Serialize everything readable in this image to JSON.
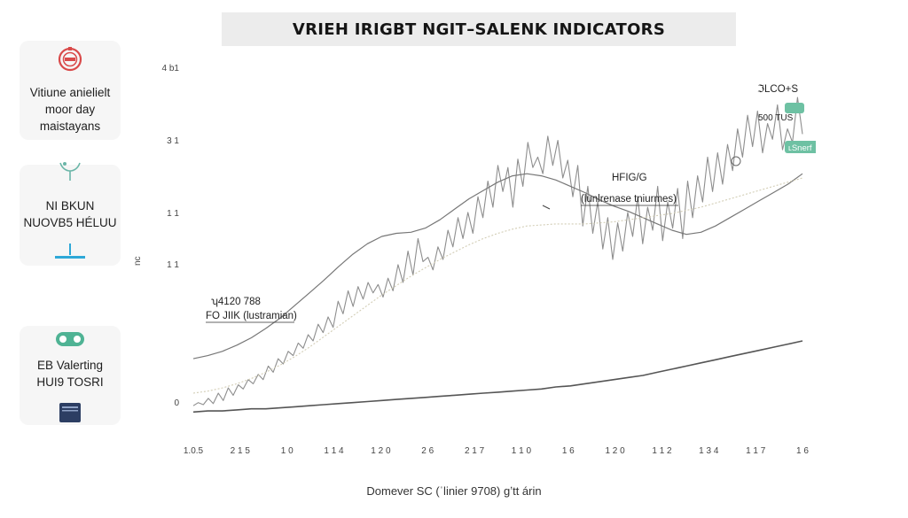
{
  "header": {
    "title": "VRIEH IRIGBT NGIT–SALENK INDICATORS"
  },
  "sidebar": {
    "cards": [
      {
        "icon": "badge-icon",
        "lines": [
          "Vitiune anielielt",
          "moor day",
          "maistayans"
        ]
      },
      {
        "icon": "sprout-icon",
        "lines": [
          "NI BKUN",
          "NUOVB5 HÉLUU"
        ]
      },
      {
        "icon": "gamepad-icon",
        "lines": [
          "EB Valerting",
          "HUI9 TOSRI"
        ]
      }
    ]
  },
  "colors": {
    "price_series": "#8e8e8e",
    "moving_average": "#777777",
    "dotted_band": "#d2cdb5",
    "baseline": "#555555",
    "pill": "#6ec1a3",
    "badge_icon": "#d94a4a",
    "sprout_icon": "#6bb6a8",
    "gamepad_icon": "#4fb394",
    "wallet_icon": "#2c3e63",
    "slider_icon": "#2ea8d8"
  },
  "chart_data": {
    "type": "line",
    "title": "VRIEH IRIGBT NGIT–SALENK INDICATORS",
    "xlabel": "Domever SC (ˈlinier 9708) gʼtt árin",
    "ylabel": "",
    "x_ticks": [
      "1.0.5",
      "2 1 5",
      "1 0",
      "1 1 4",
      "1 2 0",
      "2 6",
      "2 1 7",
      "1 1 0",
      "1 6",
      "1 2 0",
      "1 1 2",
      "1 3 4",
      "1 1 7",
      "1 6"
    ],
    "y_ticks": [
      "4 b1",
      "3 1",
      "1 1",
      "1 1",
      "0"
    ],
    "series": [
      {
        "values": [
          10,
          13,
          11,
          17,
          12,
          22,
          15,
          27,
          20,
          30,
          26,
          35,
          31,
          40,
          35,
          48,
          42,
          55,
          50,
          62,
          58,
          70,
          65,
          78,
          72,
          88,
          80,
          95,
          85,
          110,
          98,
          120,
          105,
          124,
          112,
          128,
          118,
          126,
          114,
          132,
          120,
          145,
          128,
          158,
          135,
          170,
          148,
          152,
          140,
          162,
          150,
          178,
          162,
          190,
          170,
          195,
          175,
          210,
          190,
          225,
          200,
          240,
          215,
          238,
          200,
          246,
          220,
          262,
          238,
          248,
          232,
          268,
          240,
          264,
          228,
          245,
          210,
          240,
          182,
          220,
          175,
          205,
          160,
          190,
          150,
          185,
          158,
          195,
          172,
          210,
          165,
          200,
          178,
          220,
          168,
          205,
          180,
          218,
          170,
          225,
          190,
          230,
          205,
          248,
          215,
          252,
          222,
          260,
          235,
          275,
          248,
          288,
          258,
          292,
          252,
          280,
          265,
          298,
          255,
          275,
          262,
          305,
          270
        ]
      },
      {
        "values": [
          55,
          58,
          62,
          68,
          75,
          84,
          94,
          106,
          118,
          130,
          143,
          155,
          165,
          172,
          175,
          176,
          180,
          188,
          198,
          208,
          216,
          224,
          230,
          232,
          230,
          226,
          220,
          214,
          207,
          201,
          196,
          190,
          184,
          178,
          174,
          176,
          182,
          190,
          198,
          206,
          214,
          222,
          232
        ]
      },
      {
        "values": [
          22,
          24,
          27,
          31,
          36,
          42,
          49,
          57,
          66,
          76,
          86,
          96,
          106,
          116,
          125,
          134,
          142,
          150,
          157,
          164,
          170,
          175,
          179,
          182,
          183,
          184,
          184,
          184,
          185,
          186,
          188,
          190,
          192,
          194,
          197,
          200,
          204,
          208,
          212,
          216,
          220,
          224,
          228
        ]
      },
      {
        "values": [
          4,
          5,
          5,
          6,
          7,
          7,
          8,
          9,
          10,
          11,
          12,
          13,
          14,
          15,
          16,
          17,
          18,
          19,
          20,
          21,
          22,
          23,
          24,
          25,
          26,
          28,
          29,
          31,
          33,
          35,
          37,
          39,
          42,
          45,
          48,
          51,
          54,
          57,
          60,
          63,
          66,
          69,
          72
        ]
      }
    ],
    "annotations": [
      {
        "text": "ʮ4120 788"
      },
      {
        "text": "FO JIIK (lustramian)"
      },
      {
        "text": "HFIG/G"
      },
      {
        "text": "(lunlrenase tniurmes)"
      },
      {
        "text": "ℑLCO+S"
      },
      {
        "text": "500 TUS"
      },
      {
        "text": "ʟSnerf"
      }
    ],
    "side_mark": "nc",
    "grid": false,
    "legend": "none"
  }
}
